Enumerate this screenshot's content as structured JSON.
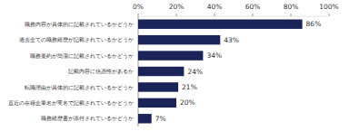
{
  "chart_data": {
    "type": "bar",
    "orientation": "horizontal",
    "categories": [
      "職務内容が具体的に記載されているかどうか",
      "過去全ての職務経歴が記載されているかどうか",
      "職務要約が簡潔に記載されているかどうか",
      "記載内容に信憑性があるか",
      "転職理由が具体的に記載されているかどうか",
      "直近の在籍企業名が実名で記載されているかどうか",
      "職務経歴書が添付されているかどうか"
    ],
    "values": [
      86,
      43,
      34,
      24,
      21,
      20,
      7
    ],
    "value_labels": [
      "86%",
      "43%",
      "34%",
      "24%",
      "21%",
      "20%",
      "7%"
    ],
    "color": "#1b2459",
    "xlim": [
      0,
      100
    ],
    "xticks": [
      {
        "value": 0,
        "label": "0%"
      },
      {
        "value": 20,
        "label": "20%"
      },
      {
        "value": 40,
        "label": "40%"
      },
      {
        "value": 60,
        "label": "60%"
      },
      {
        "value": 80,
        "label": "80%"
      },
      {
        "value": 100,
        "label": "100%"
      }
    ],
    "grid": false,
    "data_labels": true
  }
}
